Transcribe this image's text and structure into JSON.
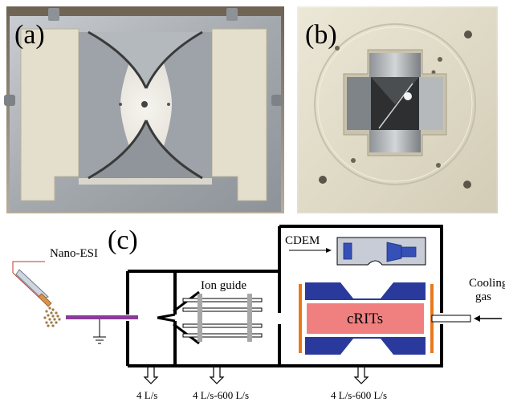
{
  "panel_a": {
    "label": "(a)"
  },
  "panel_b": {
    "label": "(b)"
  },
  "panel_c": {
    "label": "(c)",
    "nano_esi": "Nano-ESI",
    "ion_guide": "Ion guide",
    "cdem": "CDEM",
    "crits": "cRITs",
    "cooling_gas_1": "Cooling",
    "cooling_gas_2": "gas",
    "pump_1": "4 L/s",
    "pump_2": "4 L/s-600 L/s",
    "pump_3": "4 L/s-600 L/s"
  },
  "colors": {
    "electrode_blue": "#2a3a9c",
    "trap_pink": "#f08080",
    "endcap_orange": "#e8781e",
    "inlet_purple": "#8a3b9a",
    "guide_rod_gray": "#a8a8a8",
    "cdem_box": "#c8ccd6",
    "ceramic": "#e6e1cf",
    "metal": "#aab0b6"
  }
}
